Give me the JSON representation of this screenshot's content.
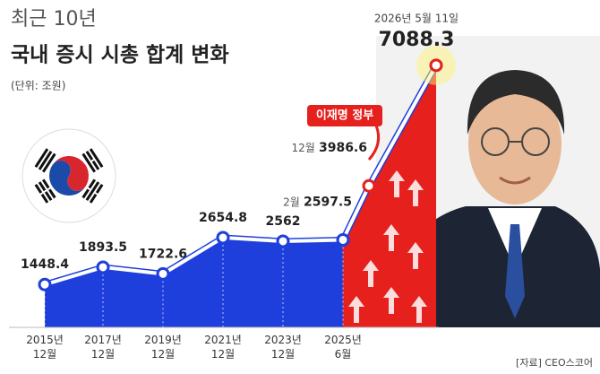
{
  "chart_data": {
    "type": "line",
    "title": "최근 10년",
    "subtitle": "국내 증시 시총 합계 변화",
    "unit": "(단위: 조원)",
    "source": "[자료] CEO스코어",
    "annotation": "이재명 정부",
    "categories": [
      "2015년 12월",
      "2017년 12월",
      "2019년 12월",
      "2021년 12월",
      "2023년 12월",
      "2025년 6월",
      null,
      null
    ],
    "values": [
      1448.4,
      1893.5,
      1722.6,
      2654.8,
      2562,
      2597.5,
      3986.6,
      7088.3
    ],
    "point_notes": [
      null,
      null,
      null,
      null,
      null,
      "2월",
      "12월",
      "2026년 5월 11일"
    ],
    "color": "#1f3fdc",
    "highlight_color": "#e5201d",
    "ylim": [
      0,
      7500
    ]
  }
}
